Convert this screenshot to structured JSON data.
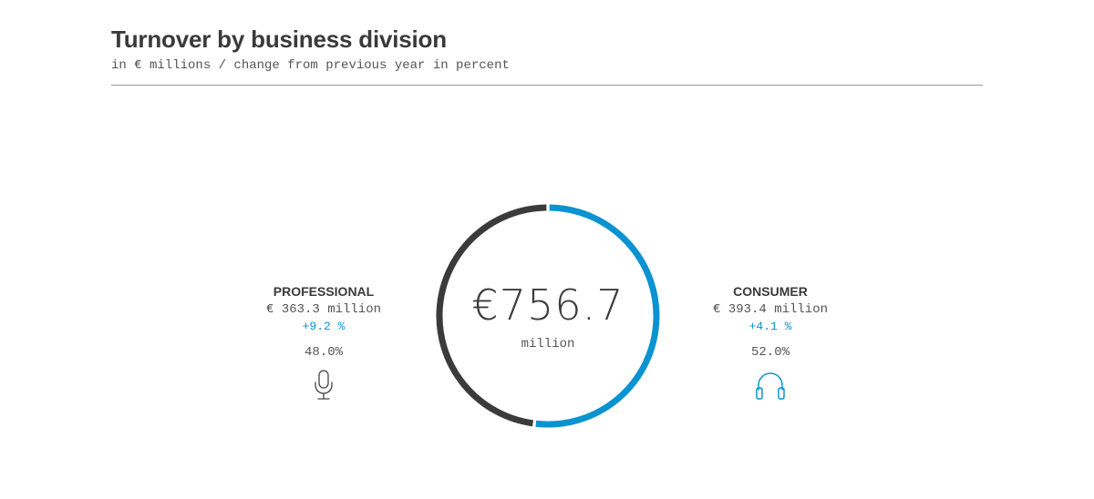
{
  "header": {
    "title": "Turnover by business division",
    "subtitle": "in € millions / change from previous year in percent"
  },
  "chart_data": {
    "type": "pie",
    "title": "Turnover by business division",
    "subtitle": "in € millions / change from previous year in percent",
    "total": {
      "value": "€756.7",
      "unit": "million"
    },
    "series": [
      {
        "name": "PROFESSIONAL",
        "value": 363.3,
        "amount_label": "€ 363.3 million",
        "change_label": "+9.2 %",
        "share": 48.0,
        "share_label": "48.0%",
        "color": "#3b3b3b",
        "icon": "microphone-icon"
      },
      {
        "name": "CONSUMER",
        "value": 393.4,
        "amount_label": "€ 393.4 million",
        "change_label": "+4.1 %",
        "share": 52.0,
        "share_label": "52.0%",
        "color": "#0a93d0",
        "icon": "headphones-icon"
      }
    ]
  },
  "colors": {
    "accent": "#0a93d0",
    "dark": "#3b3b3b",
    "rule": "#9a9a9a"
  }
}
